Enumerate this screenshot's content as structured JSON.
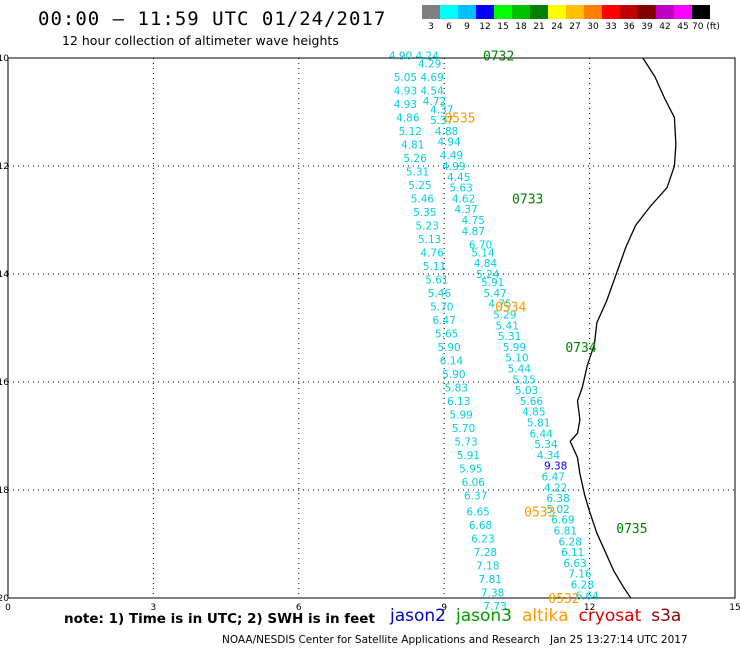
{
  "header": {
    "title": "00:00 – 11:59 UTC 01/24/2017",
    "subtitle": "12 hour collection of altimeter wave heights"
  },
  "color_scale": {
    "labels": [
      "3",
      "6",
      "9",
      "12",
      "15",
      "18",
      "21",
      "24",
      "27",
      "30",
      "33",
      "36",
      "39",
      "42",
      "45",
      "70 (ft)"
    ],
    "colors": [
      "#808080",
      "#00ffff",
      "#00c0ff",
      "#0000ff",
      "#00ff00",
      "#00c000",
      "#008000",
      "#ffff00",
      "#ffc000",
      "#ff8000",
      "#ff0000",
      "#c00000",
      "#800000",
      "#c000c0",
      "#ff00ff",
      "#000000"
    ]
  },
  "map": {
    "x_ticks": [
      "0",
      "3",
      "6",
      "9",
      "12",
      "15"
    ],
    "y_ticks": [
      "-10",
      "-12",
      "-14",
      "-16",
      "-18",
      "-20"
    ],
    "lon_range": [
      0,
      15
    ],
    "lat_range": [
      -20,
      -10
    ],
    "coastline": [
      [
        13.1,
        -10.0
      ],
      [
        13.35,
        -10.35
      ],
      [
        13.55,
        -10.75
      ],
      [
        13.75,
        -11.1
      ],
      [
        13.78,
        -11.6
      ],
      [
        13.75,
        -12.0
      ],
      [
        13.6,
        -12.4
      ],
      [
        13.25,
        -12.75
      ],
      [
        12.95,
        -13.1
      ],
      [
        12.75,
        -13.5
      ],
      [
        12.55,
        -14.0
      ],
      [
        12.35,
        -14.5
      ],
      [
        12.15,
        -14.9
      ],
      [
        12.1,
        -15.3
      ],
      [
        11.95,
        -15.7
      ],
      [
        11.85,
        -16.1
      ],
      [
        11.75,
        -16.35
      ],
      [
        11.8,
        -16.7
      ],
      [
        11.75,
        -16.95
      ],
      [
        11.6,
        -17.1
      ],
      [
        11.75,
        -17.4
      ],
      [
        11.8,
        -17.7
      ],
      [
        11.9,
        -18.1
      ],
      [
        12.0,
        -18.4
      ],
      [
        12.15,
        -18.8
      ],
      [
        12.35,
        -19.2
      ],
      [
        12.5,
        -19.5
      ],
      [
        12.7,
        -19.8
      ],
      [
        12.85,
        -20.0
      ]
    ],
    "tracks": [
      {
        "satellite": "jason3",
        "color": "#00d0e0",
        "points": [
          [
            8.1,
            -9.95,
            "4.90"
          ],
          [
            8.65,
            -9.95,
            "4.24"
          ],
          [
            8.7,
            -10.1,
            "4.29"
          ],
          [
            8.2,
            -10.35,
            "5.05"
          ],
          [
            8.75,
            -10.35,
            "4.69"
          ],
          [
            8.2,
            -10.6,
            "4.93"
          ],
          [
            8.75,
            -10.6,
            "4.54"
          ],
          [
            8.8,
            -10.8,
            "4.72"
          ],
          [
            8.2,
            -10.85,
            "4.93"
          ],
          [
            8.95,
            -10.95,
            "4.37"
          ],
          [
            8.25,
            -11.1,
            "4.86"
          ],
          [
            8.95,
            -11.15,
            "5.37"
          ],
          [
            8.3,
            -11.35,
            "5.12"
          ],
          [
            9.05,
            -11.35,
            "4.88"
          ],
          [
            8.35,
            -11.6,
            "4.81"
          ],
          [
            9.1,
            -11.55,
            "4.94"
          ],
          [
            8.4,
            -11.85,
            "5.26"
          ],
          [
            9.15,
            -11.8,
            "4.49"
          ],
          [
            9.2,
            -12.0,
            "4.99"
          ],
          [
            8.45,
            -12.1,
            "5.31"
          ],
          [
            9.3,
            -12.2,
            "4.45"
          ],
          [
            8.5,
            -12.35,
            "5.25"
          ],
          [
            9.35,
            -12.4,
            "5.63"
          ],
          [
            8.55,
            -12.6,
            "5.46"
          ],
          [
            9.4,
            -12.6,
            "4.62"
          ],
          [
            9.45,
            -12.8,
            "4.37"
          ],
          [
            8.6,
            -12.85,
            "5.35"
          ],
          [
            9.6,
            -13.0,
            "4.75"
          ],
          [
            8.65,
            -13.1,
            "5.23"
          ],
          [
            9.6,
            -13.2,
            "4.87"
          ],
          [
            8.7,
            -13.35,
            "5.13"
          ],
          [
            9.75,
            -13.45,
            "6.70"
          ],
          [
            8.75,
            -13.6,
            "4.76"
          ],
          [
            9.8,
            -13.6,
            "5.14"
          ],
          [
            9.85,
            -13.8,
            "4.84"
          ],
          [
            8.8,
            -13.85,
            "5.11"
          ],
          [
            9.9,
            -14.0,
            "5.24"
          ],
          [
            8.85,
            -14.1,
            "5.61"
          ],
          [
            10.0,
            -14.15,
            "5.91"
          ],
          [
            8.9,
            -14.35,
            "5.46"
          ],
          [
            10.05,
            -14.35,
            "5.47"
          ],
          [
            8.95,
            -14.6,
            "5.70"
          ],
          [
            10.15,
            -14.55,
            "4.75"
          ],
          [
            10.25,
            -14.75,
            "5.29"
          ],
          [
            9.0,
            -14.85,
            "6.47"
          ],
          [
            10.3,
            -14.95,
            "5.41"
          ],
          [
            9.05,
            -15.1,
            "5.65"
          ],
          [
            10.35,
            -15.15,
            "5.31"
          ],
          [
            9.1,
            -15.35,
            "5.90"
          ],
          [
            10.45,
            -15.35,
            "5.99"
          ],
          [
            10.5,
            -15.55,
            "5.10"
          ],
          [
            9.15,
            -15.6,
            "6.14"
          ],
          [
            10.55,
            -15.75,
            "5.44"
          ],
          [
            9.2,
            -15.85,
            "5.90"
          ],
          [
            10.65,
            -15.95,
            "5.15"
          ],
          [
            9.25,
            -16.1,
            "5.83"
          ],
          [
            10.7,
            -16.15,
            "5.03"
          ],
          [
            9.3,
            -16.35,
            "6.13"
          ],
          [
            10.8,
            -16.35,
            "5.66"
          ],
          [
            10.85,
            -16.55,
            "4.85"
          ],
          [
            9.35,
            -16.6,
            "5.99"
          ],
          [
            10.95,
            -16.75,
            "5.81"
          ],
          [
            9.4,
            -16.85,
            "5.70"
          ],
          [
            11.0,
            -16.95,
            "6.44"
          ],
          [
            9.45,
            -17.1,
            "5.73"
          ],
          [
            11.1,
            -17.15,
            "5.34"
          ],
          [
            9.5,
            -17.35,
            "5.91"
          ],
          [
            11.15,
            -17.35,
            "4.34"
          ],
          [
            9.55,
            -17.6,
            "5.95"
          ],
          [
            11.25,
            -17.75,
            "6.47"
          ],
          [
            9.6,
            -17.85,
            "6.06"
          ],
          [
            11.3,
            -17.95,
            "4.22"
          ],
          [
            9.65,
            -18.1,
            "6.37"
          ],
          [
            11.35,
            -18.15,
            "6.38"
          ],
          [
            11.35,
            -18.35,
            "5.02"
          ],
          [
            9.7,
            -18.4,
            "6.65"
          ],
          [
            11.45,
            -18.55,
            "6.69"
          ],
          [
            9.75,
            -18.65,
            "6.68"
          ],
          [
            11.5,
            -18.75,
            "6.81"
          ],
          [
            9.8,
            -18.9,
            "6.23"
          ],
          [
            11.6,
            -18.95,
            "6.28"
          ],
          [
            9.85,
            -19.15,
            "7.28"
          ],
          [
            11.65,
            -19.15,
            "6.11"
          ],
          [
            11.7,
            -19.35,
            "6.63"
          ],
          [
            9.9,
            -19.4,
            "7.18"
          ],
          [
            11.8,
            -19.55,
            "7.16"
          ],
          [
            9.95,
            -19.65,
            "7.81"
          ],
          [
            11.85,
            -19.75,
            "6.28"
          ],
          [
            10.0,
            -19.9,
            "7.38"
          ],
          [
            11.95,
            -19.95,
            "6.64"
          ],
          [
            10.05,
            -20.15,
            "7.73"
          ]
        ]
      },
      {
        "satellite": "jason2",
        "color": "#0000ff",
        "points": [
          [
            11.3,
            -17.55,
            "9.38"
          ]
        ]
      }
    ],
    "time_labels": [
      {
        "lon": 9.8,
        "lat": -9.95,
        "text": "0732",
        "color": "#008000"
      },
      {
        "lon": 9.0,
        "lat": -11.1,
        "text": "0535",
        "color": "#ff9900"
      },
      {
        "lon": 10.4,
        "lat": -12.6,
        "text": "0733",
        "color": "#008000"
      },
      {
        "lon": 10.05,
        "lat": -14.6,
        "text": "0534",
        "color": "#ff9900"
      },
      {
        "lon": 11.5,
        "lat": -15.35,
        "text": "0734",
        "color": "#008000"
      },
      {
        "lon": 10.65,
        "lat": -18.4,
        "text": "0533",
        "color": "#ff9900"
      },
      {
        "lon": 12.55,
        "lat": -18.7,
        "text": "0735",
        "color": "#008000"
      },
      {
        "lon": 11.15,
        "lat": -20.0,
        "text": "0532",
        "color": "#ff9900"
      }
    ]
  },
  "note": "note: 1) Time is in UTC; 2) SWH is in feet",
  "legend": [
    {
      "name": "jason2",
      "color": "#0000cc"
    },
    {
      "name": "jason3",
      "color": "#009900"
    },
    {
      "name": "altika",
      "color": "#ff9900"
    },
    {
      "name": "cryosat",
      "color": "#dd0000"
    },
    {
      "name": "s3a",
      "color": "#990000"
    }
  ],
  "footer": {
    "agency": "NOAA/NESDIS Center for Satellite Applications and Research",
    "timestamp": "Jan 25 13:27:14 UTC 2017"
  }
}
